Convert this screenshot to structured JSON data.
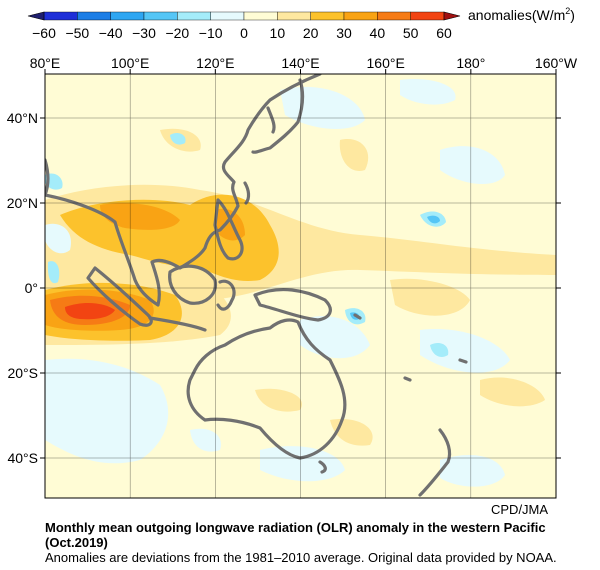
{
  "legend": {
    "label_main": "anomalies(W/m",
    "label_sup": "2",
    "label_tail": ")",
    "ticks": [
      "−60",
      "−50",
      "−40",
      "−30",
      "−20",
      "−10",
      "0",
      "10",
      "20",
      "30",
      "40",
      "50",
      "60"
    ],
    "colors": [
      "#1e2fd8",
      "#1c7ee6",
      "#2ea6f2",
      "#55c6f6",
      "#a4ecfa",
      "#e6fafd",
      "#fffcd5",
      "#fee8a0",
      "#fcc22c",
      "#f9a314",
      "#f67b15",
      "#f24412"
    ]
  },
  "axes": {
    "lon_labels": [
      "80°E",
      "100°E",
      "120°E",
      "140°E",
      "160°E",
      "180°",
      "160°W"
    ],
    "lat_labels": [
      "40°N",
      "20°N",
      "0°",
      "20°S",
      "40°S"
    ]
  },
  "credit": "CPD/JMA",
  "caption": {
    "title": "Monthly mean outgoing longwave radiation (OLR) anomaly in the western Pacific (Oct.2019)",
    "note": "Anomalies are deviations from the 1981–2010 average. Original data provided by NOAA."
  }
}
